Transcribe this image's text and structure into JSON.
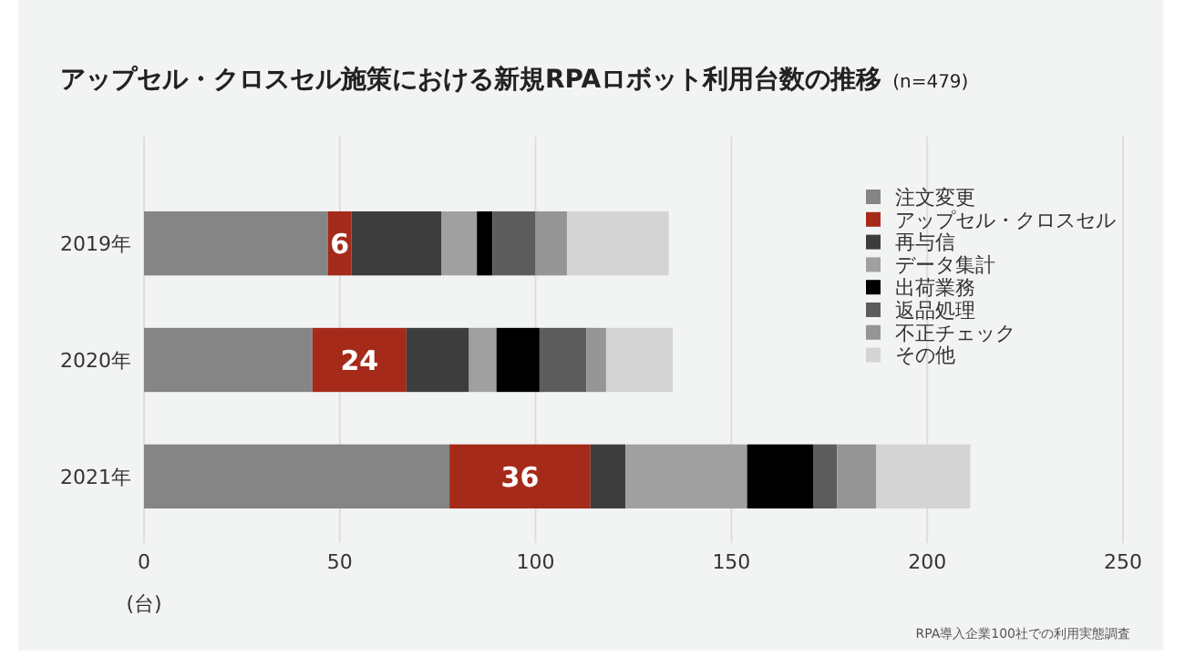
{
  "chart_data": {
    "type": "bar",
    "orientation": "horizontal",
    "stacked": true,
    "title": "アップセル・クロスセル施策における新規RPAロボット利用台数の推移",
    "subtitle": "(n=479)",
    "xlabel": "(台)",
    "categories": [
      "2019年",
      "2020年",
      "2021年"
    ],
    "series": [
      {
        "name": "注文変更",
        "color": "#858585",
        "values": [
          47,
          43,
          78
        ]
      },
      {
        "name": "アップセル・クロスセル",
        "color": "#a52a1a",
        "values": [
          6,
          24,
          36
        ],
        "value_labels": [
          "6",
          "24",
          "36"
        ]
      },
      {
        "name": "再与信",
        "color": "#3d3d3d",
        "values": [
          23,
          16,
          9
        ]
      },
      {
        "name": "データ集計",
        "color": "#a0a0a0",
        "values": [
          9,
          7,
          31
        ]
      },
      {
        "name": "出荷業務",
        "color": "#000000",
        "values": [
          4,
          11,
          17
        ]
      },
      {
        "name": "返品処理",
        "color": "#5c5c5c",
        "values": [
          11,
          12,
          6
        ]
      },
      {
        "name": "不正チェック",
        "color": "#959595",
        "values": [
          8,
          5,
          10
        ]
      },
      {
        "name": "その他",
        "color": "#d4d4d4",
        "values": [
          26,
          17,
          24
        ]
      }
    ],
    "xlim": [
      0,
      250
    ],
    "xticks": [
      0,
      50,
      100,
      150,
      200,
      250
    ],
    "grid": "x",
    "legend": "top right",
    "annotations": [
      "RPA導入企業100社での利用実態調査"
    ]
  }
}
